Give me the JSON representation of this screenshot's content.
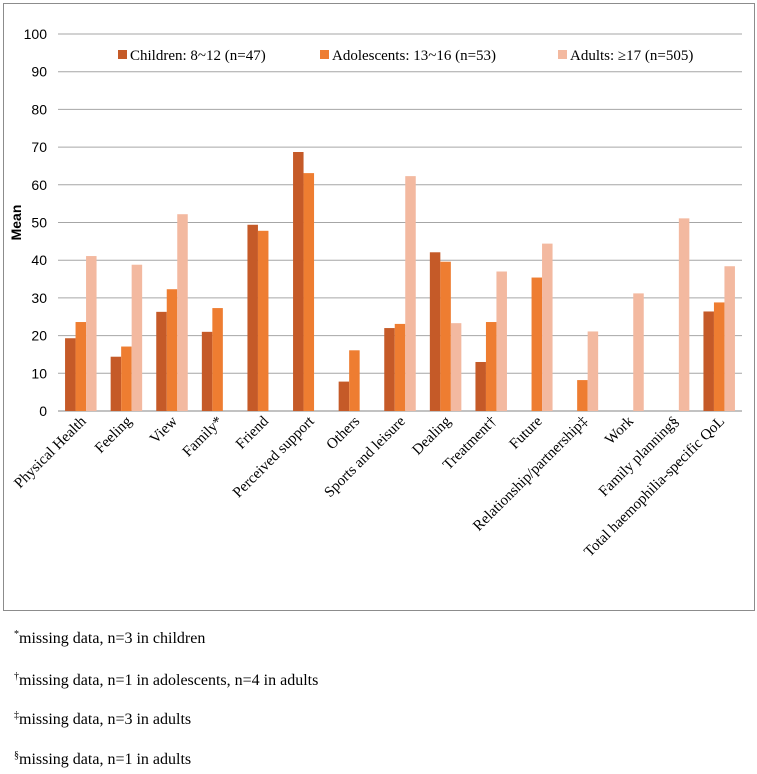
{
  "chart_data": {
    "type": "bar",
    "title": "",
    "xlabel": "",
    "ylabel": "Mean",
    "ylim": [
      0,
      100
    ],
    "yticks": [
      0,
      10,
      20,
      30,
      40,
      50,
      60,
      70,
      80,
      90,
      100
    ],
    "grid": true,
    "legend_position": "top",
    "categories": [
      "Physical Health",
      "Feeling",
      "View",
      "Family*",
      "Friend",
      "Perceived support",
      "Others",
      "Sports and leisure",
      "Dealing",
      "Treatment†",
      "Future",
      "Relationship/partnership‡",
      "Work",
      "Family planning§",
      "Total haemophilia-specific QoL"
    ],
    "series": [
      {
        "name": "Children: 8~12 (n=47)",
        "color": "#c55a28",
        "values": [
          19.3,
          14.4,
          26.3,
          21.0,
          49.4,
          68.7,
          7.8,
          22.0,
          42.1,
          13.0,
          null,
          null,
          null,
          null,
          26.4
        ]
      },
      {
        "name": "Adolescents: 13~16 (n=53)",
        "color": "#ee7d31",
        "values": [
          23.6,
          17.1,
          32.3,
          27.3,
          47.8,
          63.1,
          16.1,
          23.1,
          39.6,
          23.6,
          35.4,
          8.2,
          null,
          null,
          28.8
        ]
      },
      {
        "name": "Adults: ≥17 (n=505)",
        "color": "#f3b9a0",
        "values": [
          41.1,
          38.8,
          52.2,
          null,
          null,
          null,
          null,
          62.3,
          23.3,
          37.0,
          44.4,
          21.1,
          31.2,
          51.1,
          38.4
        ]
      }
    ]
  },
  "footnotes": [
    {
      "mark": "*",
      "text": "missing data, n=3 in children"
    },
    {
      "mark": "†",
      "text": "missing data, n=1 in adolescents, n=4 in adults"
    },
    {
      "mark": "‡",
      "text": "missing data, n=3 in adults"
    },
    {
      "mark": "§",
      "text": "missing data, n=1 in adults"
    }
  ]
}
